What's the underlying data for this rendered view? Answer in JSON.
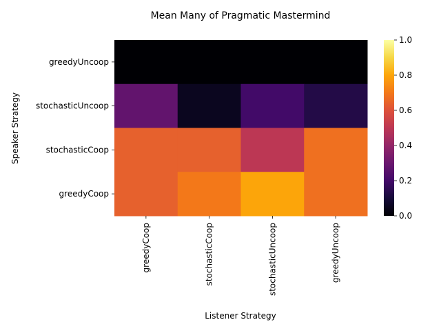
{
  "chart_data": {
    "type": "heatmap",
    "title": "Mean Many of Pragmatic Mastermind",
    "xlabel": "Listener Strategy",
    "ylabel": "Speaker Strategy",
    "x_categories": [
      "greedyCoop",
      "stochasticCoop",
      "stochasticUncoop",
      "greedyUncoop"
    ],
    "y_categories": [
      "greedyUncoop",
      "stochasticUncoop",
      "stochasticCoop",
      "greedyCoop"
    ],
    "values": [
      [
        0.0,
        0.0,
        0.0,
        0.0
      ],
      [
        0.28,
        0.05,
        0.2,
        0.13
      ],
      [
        0.64,
        0.64,
        0.5,
        0.68
      ],
      [
        0.64,
        0.7,
        0.8,
        0.68
      ]
    ],
    "colorscale": "inferno",
    "vmin": 0.0,
    "vmax": 1.0,
    "colorbar_ticks": [
      "0.0",
      "0.2",
      "0.4",
      "0.6",
      "0.8",
      "1.0"
    ]
  }
}
